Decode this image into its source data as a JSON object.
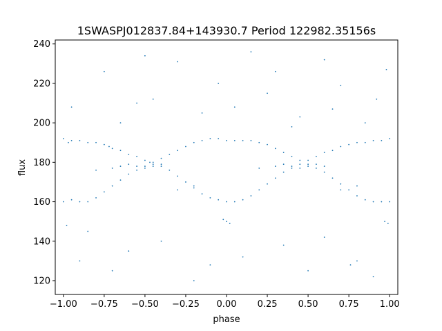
{
  "chart_data": {
    "type": "scatter",
    "title": "1SWASPJ012837.84+143930.7 Period 122982.35156s",
    "xlabel": "phase",
    "ylabel": "flux",
    "xlim": [
      -1.05,
      1.05
    ],
    "ylim": [
      113,
      242
    ],
    "x_ticks": [
      -1.0,
      -0.75,
      -0.5,
      -0.25,
      0.0,
      0.25,
      0.5,
      0.75,
      1.0
    ],
    "x_tick_labels": [
      "−1.00",
      "−0.75",
      "−0.50",
      "−0.25",
      "0.00",
      "0.25",
      "0.50",
      "0.75",
      "1.00"
    ],
    "y_ticks": [
      120,
      140,
      160,
      180,
      200,
      220,
      240
    ],
    "y_tick_labels": [
      "120",
      "140",
      "160",
      "180",
      "200",
      "220",
      "240"
    ],
    "grid": false,
    "marker_color": "#1f77b4",
    "series": [
      {
        "points": [
          [
            -1.0,
            192
          ],
          [
            -0.97,
            190
          ],
          [
            -0.95,
            191
          ],
          [
            -0.9,
            191
          ],
          [
            -0.85,
            190
          ],
          [
            -0.8,
            190
          ],
          [
            -0.75,
            189
          ],
          [
            -0.72,
            188
          ],
          [
            -0.7,
            187
          ],
          [
            -0.65,
            186
          ],
          [
            -0.6,
            184
          ],
          [
            -0.55,
            183
          ],
          [
            -0.5,
            181
          ],
          [
            -0.47,
            180
          ],
          [
            -0.45,
            179
          ],
          [
            -0.4,
            178
          ],
          [
            -0.35,
            176
          ],
          [
            -0.3,
            173
          ],
          [
            -0.25,
            170
          ],
          [
            -0.2,
            167
          ],
          [
            -0.15,
            164
          ],
          [
            -0.1,
            162
          ],
          [
            -0.05,
            161
          ],
          [
            0.0,
            160
          ],
          [
            0.05,
            160
          ],
          [
            0.1,
            161
          ],
          [
            0.15,
            163
          ],
          [
            0.2,
            166
          ],
          [
            0.25,
            169
          ],
          [
            0.3,
            172
          ],
          [
            0.35,
            175
          ],
          [
            0.4,
            177
          ],
          [
            0.45,
            179
          ],
          [
            0.5,
            181
          ],
          [
            0.55,
            183
          ],
          [
            0.6,
            185
          ],
          [
            0.65,
            186
          ],
          [
            0.7,
            188
          ],
          [
            0.75,
            189
          ],
          [
            0.8,
            190
          ],
          [
            0.85,
            190
          ],
          [
            0.9,
            191
          ],
          [
            0.95,
            191
          ],
          [
            1.0,
            192
          ],
          [
            -1.0,
            160
          ],
          [
            -0.95,
            161
          ],
          [
            -0.9,
            160
          ],
          [
            -0.85,
            160
          ],
          [
            -0.8,
            162
          ],
          [
            -0.75,
            165
          ],
          [
            -0.7,
            168
          ],
          [
            -0.65,
            171
          ],
          [
            -0.6,
            174
          ],
          [
            -0.55,
            176
          ],
          [
            -0.5,
            178
          ],
          [
            -0.45,
            180
          ],
          [
            -0.4,
            182
          ],
          [
            -0.35,
            184
          ],
          [
            -0.3,
            186
          ],
          [
            -0.25,
            188
          ],
          [
            -0.2,
            190
          ],
          [
            -0.15,
            191
          ],
          [
            -0.1,
            192
          ],
          [
            -0.05,
            192
          ],
          [
            0.0,
            191
          ],
          [
            0.05,
            191
          ],
          [
            0.1,
            191
          ],
          [
            0.15,
            191
          ],
          [
            0.2,
            190
          ],
          [
            0.25,
            189
          ],
          [
            0.3,
            187
          ],
          [
            0.35,
            185
          ],
          [
            0.4,
            183
          ],
          [
            0.45,
            181
          ],
          [
            0.5,
            179
          ],
          [
            0.55,
            177
          ],
          [
            0.6,
            175
          ],
          [
            0.65,
            172
          ],
          [
            0.7,
            169
          ],
          [
            0.75,
            166
          ],
          [
            0.8,
            163
          ],
          [
            0.85,
            161
          ],
          [
            0.9,
            160
          ],
          [
            0.95,
            160
          ],
          [
            1.0,
            160
          ],
          [
            -0.7,
            177
          ],
          [
            -0.65,
            178
          ],
          [
            -0.6,
            179
          ],
          [
            -0.55,
            178
          ],
          [
            -0.5,
            177
          ],
          [
            -0.45,
            178
          ],
          [
            -0.4,
            179
          ],
          [
            0.3,
            178
          ],
          [
            0.35,
            179
          ],
          [
            0.4,
            178
          ],
          [
            0.45,
            177
          ],
          [
            0.5,
            178
          ],
          [
            0.55,
            179
          ],
          [
            0.6,
            178
          ],
          [
            -0.8,
            176
          ],
          [
            0.2,
            177
          ],
          [
            -0.2,
            168
          ],
          [
            0.8,
            168
          ],
          [
            -0.3,
            166
          ],
          [
            0.7,
            166
          ],
          [
            0.0,
            150
          ],
          [
            -0.02,
            151
          ],
          [
            0.02,
            149
          ],
          [
            0.97,
            150
          ],
          [
            0.99,
            149
          ],
          [
            -0.98,
            148
          ],
          [
            -0.85,
            145
          ],
          [
            -0.6,
            135
          ],
          [
            -0.4,
            140
          ],
          [
            -0.1,
            128
          ],
          [
            0.1,
            132
          ],
          [
            0.35,
            138
          ],
          [
            0.6,
            142
          ],
          [
            0.8,
            130
          ],
          [
            0.9,
            122
          ],
          [
            -0.9,
            130
          ],
          [
            -0.7,
            125
          ],
          [
            -0.55,
            210
          ],
          [
            -0.45,
            212
          ],
          [
            -0.15,
            205
          ],
          [
            0.05,
            208
          ],
          [
            0.25,
            215
          ],
          [
            0.45,
            203
          ],
          [
            0.65,
            207
          ],
          [
            0.85,
            200
          ],
          [
            -0.75,
            226
          ],
          [
            -0.3,
            231
          ],
          [
            0.3,
            226
          ],
          [
            0.6,
            232
          ],
          [
            0.98,
            227
          ],
          [
            -0.5,
            234
          ],
          [
            0.15,
            236
          ],
          [
            -0.95,
            208
          ],
          [
            0.92,
            212
          ],
          [
            -0.2,
            120
          ],
          [
            0.5,
            125
          ],
          [
            0.76,
            128
          ],
          [
            -0.65,
            200
          ],
          [
            0.4,
            198
          ],
          [
            -0.05,
            220
          ],
          [
            0.7,
            219
          ]
        ]
      }
    ]
  }
}
